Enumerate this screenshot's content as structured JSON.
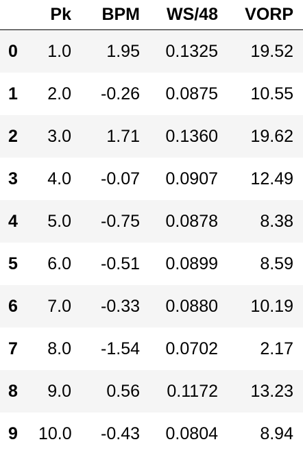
{
  "table": {
    "columns": [
      "",
      "Pk",
      "BPM",
      "WS/48",
      "VORP"
    ],
    "rows": [
      {
        "index": "0",
        "pk": "1.0",
        "bpm": "1.95",
        "ws48": "0.1325",
        "vorp": "19.52"
      },
      {
        "index": "1",
        "pk": "2.0",
        "bpm": "-0.26",
        "ws48": "0.0875",
        "vorp": "10.55"
      },
      {
        "index": "2",
        "pk": "3.0",
        "bpm": "1.71",
        "ws48": "0.1360",
        "vorp": "19.62"
      },
      {
        "index": "3",
        "pk": "4.0",
        "bpm": "-0.07",
        "ws48": "0.0907",
        "vorp": "12.49"
      },
      {
        "index": "4",
        "pk": "5.0",
        "bpm": "-0.75",
        "ws48": "0.0878",
        "vorp": "8.38"
      },
      {
        "index": "5",
        "pk": "6.0",
        "bpm": "-0.51",
        "ws48": "0.0899",
        "vorp": "8.59"
      },
      {
        "index": "6",
        "pk": "7.0",
        "bpm": "-0.33",
        "ws48": "0.0880",
        "vorp": "10.19"
      },
      {
        "index": "7",
        "pk": "8.0",
        "bpm": "-1.54",
        "ws48": "0.0702",
        "vorp": "2.17"
      },
      {
        "index": "8",
        "pk": "9.0",
        "bpm": "0.56",
        "ws48": "0.1172",
        "vorp": "13.23"
      },
      {
        "index": "9",
        "pk": "10.0",
        "bpm": "-0.43",
        "ws48": "0.0804",
        "vorp": "8.94"
      }
    ]
  }
}
